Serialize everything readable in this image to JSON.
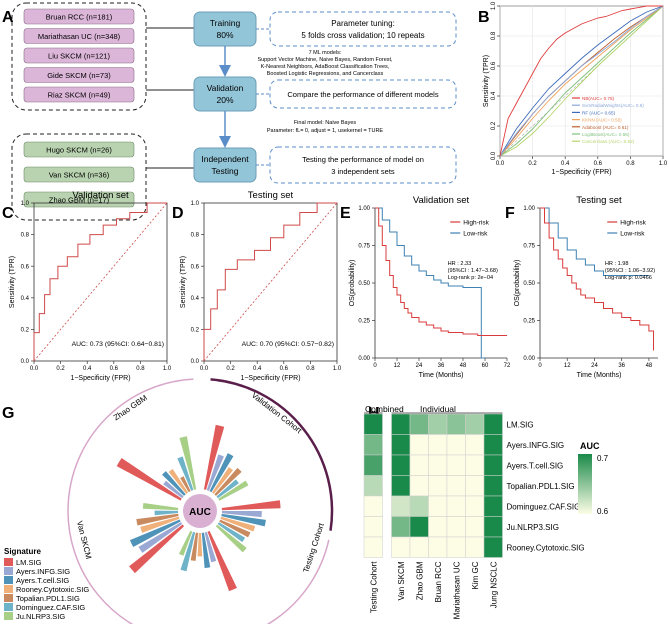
{
  "colors": {
    "pink_box": "#dcb6d9",
    "pink_border": "#222222",
    "green_box": "#b9d3b0",
    "blue_box": "#93c5d8",
    "dash_blue": "#5b8ec9",
    "roc_red": "#cf4a4a",
    "km_red": "#d93b3b",
    "km_blue": "#3f82b3",
    "heat_low": "#fdfde6",
    "heat_high": "#1a8a4a",
    "arc_dark": "#5a1e4a",
    "arc_light": "#d7a6c9",
    "auc_center": "#d9b0d2"
  },
  "panels": {
    "A": "A",
    "B": "B",
    "C": "C",
    "D": "D",
    "E": "E",
    "F": "F",
    "G": "G",
    "H": "H"
  },
  "panel_a": {
    "training_cohorts": [
      "Bruan RCC (n=181)",
      "Mariathasan UC (n=348)",
      "Liu SKCM (n=121)",
      "Gide SKCM (n=73)",
      "Riaz SKCM (n=49)"
    ],
    "testing_cohorts": [
      "Hugo SKCM (n=26)",
      "Van SKCM (n=36)",
      "Zhao GBM (n=17)"
    ],
    "training_label": "Training",
    "training_pct": "80%",
    "validation_label": "Validation",
    "validation_pct": "20%",
    "testing_label_1": "Independent",
    "testing_label_2": "Testing",
    "tuning_title": "Parameter tuning:",
    "tuning_desc": "5 folds cross validation; 10 repeats",
    "models_title": "7 ML models:",
    "models_line1": "Support Vector Machine, Naive Bayes, Random Forest,",
    "models_line2": "K-Nearest Neighbors, AdaBoost Classification Trees,",
    "models_line3": "Boosted Logistic Regressions, and Cancerclass",
    "compare_text": "Compare the performance of different models",
    "final_title": "Final model: Naive Bayes",
    "final_params": "Parameter:  fL= 0,  adjust = 1,  usekernel = TURE",
    "testing_line1": "Testing the performance of model  on",
    "testing_line2": "3 independent sets"
  },
  "panel_b": {
    "xlabel": "1−Specificity (FPR)",
    "ylabel": "Sensitivity (TPR)",
    "xticks": [
      "0.0",
      "0.2",
      "0.4",
      "0.6",
      "0.8",
      "1.0"
    ],
    "yticks": [
      "0.0",
      "0.2",
      "0.4",
      "0.6",
      "0.8",
      "1.0"
    ],
    "legend": [
      {
        "label": "NB(AUC= 0.75)",
        "color": "#e03c3c"
      },
      {
        "label": "SvmRadialWeights(AUC= 0.6)",
        "color": "#8aa7d8"
      },
      {
        "label": "RF (AUC= 0.65)",
        "color": "#3d6ab8"
      },
      {
        "label": "KKNN (AUC= 0.58)",
        "color": "#f0a35a"
      },
      {
        "label": "Adaboost (AUC= 0.61)",
        "color": "#c0622f"
      },
      {
        "label": "LogitBoost(AUC= 0.55)",
        "color": "#7fc07a"
      },
      {
        "label": "Cancerclass (AUC= 0.52)",
        "color": "#b5d56a"
      }
    ]
  },
  "panel_c": {
    "title": "Validation set",
    "xlabel": "1−Specificity (FPR)",
    "ylabel": "Sensitivity (TPR)",
    "auc_text": "AUC: 0.73 (95%CI: 0.64−0.81)",
    "xticks": [
      "0.0",
      "0.2",
      "0.4",
      "0.6",
      "0.8",
      "1.0"
    ],
    "yticks": [
      "0.0",
      "0.2",
      "0.4",
      "0.6",
      "0.8",
      "1.0"
    ]
  },
  "panel_d": {
    "title": "Testing set",
    "xlabel": "1−Specificity (FPR)",
    "ylabel": "Sensitivity (TPR)",
    "auc_text": "AUC: 0.70 (95%CI: 0.57−0.82)",
    "xticks": [
      "0.0",
      "0.2",
      "0.4",
      "0.6",
      "0.8",
      "1.0"
    ],
    "yticks": [
      "0.0",
      "0.2",
      "0.4",
      "0.6",
      "0.8",
      "1.0"
    ]
  },
  "panel_e": {
    "title": "Validation set",
    "xlabel": "Time (Months)",
    "ylabel": "OS(probability)",
    "xticks": [
      "0",
      "12",
      "24",
      "36",
      "48",
      "60",
      "72"
    ],
    "yticks": [
      "0.00",
      "0.25",
      "0.50",
      "0.75",
      "1.00"
    ],
    "legend_high": "High-risk",
    "legend_low": "Low-risk",
    "hr": "HR : 2.33",
    "ci": "(95%CI : 1.47−3.68)",
    "pval": "Log-rank p: 2e−04"
  },
  "panel_f": {
    "title": "Testing set",
    "xlabel": "Time (Months)",
    "ylabel": "OS(probability)",
    "xticks": [
      "0",
      "12",
      "24",
      "36",
      "48"
    ],
    "yticks": [
      "0.00",
      "0.25",
      "0.50",
      "0.75",
      "1.00"
    ],
    "legend_high": "High-risk",
    "legend_low": "Low-risk",
    "hr": "HR : 1.98",
    "ci": "(95%CI : 1.06−3.92)",
    "pval": "Log-rank p: 0.0466"
  },
  "panel_g": {
    "center": "AUC",
    "arc_validation": "Validation Cohort",
    "arc_testing": "Testing Cohort",
    "arc_hugo": "Hugo SKCM",
    "arc_van": "Van SKCM",
    "arc_zhao": "Zhao GBM",
    "legend_title": "Signature",
    "signatures": [
      {
        "label": "LM.SIG",
        "color": "#e15a5a"
      },
      {
        "label": "Ayers.INFG.SIG",
        "color": "#9aa8d4"
      },
      {
        "label": "Ayers.T.cell.SIG",
        "color": "#4f93b8"
      },
      {
        "label": "Rooney.Cytotoxic.SIG",
        "color": "#f0b07a"
      },
      {
        "label": "Topalian.PDL1.SIG",
        "color": "#c88a5e"
      },
      {
        "label": "Dominguez.CAF.SIG",
        "color": "#6fb3c9"
      },
      {
        "label": "Ju.NLRP3.SIG",
        "color": "#a7cf86"
      }
    ]
  },
  "panel_h": {
    "header_combined": "Combined",
    "header_individual": "Individual",
    "rows": [
      "LM.SIG",
      "Ayers.INFG.SIG",
      "Ayers.T.cell.SIG",
      "Topalian.PDL1.SIG",
      "Dominguez.CAF.SIG",
      "Ju.NLRP3.SIG",
      "Rooney.Cytotoxic.SIG"
    ],
    "cols": [
      "Testing Cohort",
      "Van SKCM",
      "Zhao GBM",
      "Bruan RCC",
      "Mariathasan UC",
      "Kim GC",
      "Jung NSCLC"
    ],
    "legend_title": "AUC",
    "legend_max": "0.7",
    "legend_min": "0.6"
  },
  "chart_data": [
    {
      "type": "line",
      "panel": "B",
      "xlabel": "1−Specificity (FPR)",
      "ylabel": "Sensitivity (TPR)",
      "xlim": [
        0,
        1
      ],
      "ylim": [
        0,
        1
      ],
      "series": [
        {
          "name": "NB(AUC= 0.75)",
          "x": [
            0,
            0.05,
            0.1,
            0.15,
            0.2,
            0.25,
            0.3,
            0.35,
            0.4,
            0.45,
            0.5,
            0.55,
            0.6,
            0.65,
            0.7,
            0.75,
            0.8,
            0.9,
            1
          ],
          "y": [
            0,
            0.25,
            0.35,
            0.45,
            0.55,
            0.65,
            0.72,
            0.78,
            0.82,
            0.85,
            0.88,
            0.9,
            0.92,
            0.93,
            0.95,
            0.97,
            0.98,
            1,
            1
          ]
        },
        {
          "name": "SvmRadialWeights(AUC= 0.6)",
          "x": [
            0,
            0.1,
            0.2,
            0.3,
            0.4,
            0.5,
            0.6,
            0.7,
            0.8,
            0.9,
            1
          ],
          "y": [
            0,
            0.15,
            0.28,
            0.4,
            0.5,
            0.6,
            0.68,
            0.76,
            0.85,
            0.93,
            1
          ]
        },
        {
          "name": "RF (AUC= 0.65)",
          "x": [
            0,
            0.1,
            0.2,
            0.3,
            0.4,
            0.5,
            0.6,
            0.7,
            0.8,
            0.9,
            1
          ],
          "y": [
            0,
            0.18,
            0.32,
            0.45,
            0.55,
            0.65,
            0.74,
            0.82,
            0.9,
            0.96,
            1
          ]
        },
        {
          "name": "KKNN (AUC= 0.58)",
          "x": [
            0,
            0.1,
            0.2,
            0.3,
            0.4,
            0.5,
            0.6,
            0.7,
            0.8,
            0.9,
            1
          ],
          "y": [
            0,
            0.12,
            0.25,
            0.37,
            0.48,
            0.57,
            0.66,
            0.75,
            0.84,
            0.92,
            1
          ]
        },
        {
          "name": "Adaboost (AUC= 0.61)",
          "x": [
            0,
            0.1,
            0.2,
            0.3,
            0.4,
            0.5,
            0.6,
            0.7,
            0.8,
            0.9,
            1
          ],
          "y": [
            0,
            0.14,
            0.28,
            0.4,
            0.5,
            0.6,
            0.69,
            0.78,
            0.86,
            0.93,
            1
          ]
        },
        {
          "name": "LogitBoost(AUC= 0.55)",
          "x": [
            0,
            0.1,
            0.2,
            0.3,
            0.4,
            0.5,
            0.6,
            0.7,
            0.8,
            0.9,
            1
          ],
          "y": [
            0,
            0.08,
            0.18,
            0.3,
            0.42,
            0.52,
            0.62,
            0.72,
            0.82,
            0.91,
            1
          ]
        },
        {
          "name": "Cancerclass (AUC= 0.52)",
          "x": [
            0,
            0.1,
            0.2,
            0.3,
            0.4,
            0.5,
            0.6,
            0.7,
            0.8,
            0.9,
            1
          ],
          "y": [
            0,
            0.06,
            0.15,
            0.26,
            0.38,
            0.49,
            0.6,
            0.7,
            0.8,
            0.9,
            1
          ]
        }
      ]
    },
    {
      "type": "line",
      "panel": "C",
      "title": "Validation set",
      "xlim": [
        0,
        1
      ],
      "ylim": [
        0,
        1
      ],
      "series": [
        {
          "x": [
            0,
            0,
            0.04,
            0.04,
            0.08,
            0.08,
            0.12,
            0.12,
            0.18,
            0.18,
            0.25,
            0.25,
            0.33,
            0.33,
            0.42,
            0.42,
            0.52,
            0.52,
            0.62,
            0.62,
            0.72,
            0.72,
            0.85,
            0.85,
            1
          ],
          "y": [
            0,
            0.18,
            0.18,
            0.3,
            0.3,
            0.42,
            0.42,
            0.52,
            0.52,
            0.6,
            0.6,
            0.66,
            0.66,
            0.74,
            0.74,
            0.8,
            0.8,
            0.86,
            0.86,
            0.9,
            0.9,
            0.94,
            0.94,
            1,
            1
          ]
        }
      ],
      "auc": 0.73
    },
    {
      "type": "line",
      "panel": "D",
      "title": "Testing set",
      "xlim": [
        0,
        1
      ],
      "ylim": [
        0,
        1
      ],
      "series": [
        {
          "x": [
            0,
            0,
            0.05,
            0.05,
            0.1,
            0.1,
            0.16,
            0.16,
            0.25,
            0.25,
            0.38,
            0.38,
            0.5,
            0.5,
            0.6,
            0.6,
            0.72,
            0.72,
            0.85,
            0.85,
            1
          ],
          "y": [
            0,
            0.2,
            0.2,
            0.33,
            0.33,
            0.45,
            0.45,
            0.58,
            0.58,
            0.64,
            0.64,
            0.7,
            0.7,
            0.78,
            0.78,
            0.86,
            0.86,
            0.94,
            0.94,
            1,
            1
          ]
        }
      ],
      "auc": 0.7
    },
    {
      "type": "line",
      "panel": "E",
      "title": "Validation set",
      "xlim": [
        0,
        72
      ],
      "ylim": [
        0,
        1
      ],
      "series": [
        {
          "name": "High-risk",
          "x": [
            0,
            2,
            4,
            6,
            8,
            10,
            12,
            14,
            16,
            18,
            20,
            24,
            28,
            32,
            36,
            40,
            48,
            56,
            64,
            72
          ],
          "y": [
            1,
            0.88,
            0.75,
            0.65,
            0.55,
            0.47,
            0.42,
            0.37,
            0.33,
            0.3,
            0.27,
            0.24,
            0.22,
            0.2,
            0.18,
            0.17,
            0.16,
            0.15,
            0.15,
            0.15
          ]
        },
        {
          "name": "Low-risk",
          "x": [
            0,
            4,
            8,
            12,
            16,
            20,
            24,
            28,
            32,
            36,
            40,
            44,
            48,
            52,
            56,
            58,
            60
          ],
          "y": [
            1,
            0.92,
            0.84,
            0.75,
            0.68,
            0.62,
            0.58,
            0.55,
            0.52,
            0.5,
            0.48,
            0.48,
            0.47,
            0.47,
            0.47,
            0,
            0
          ]
        }
      ]
    },
    {
      "type": "line",
      "panel": "F",
      "title": "Testing set",
      "xlim": [
        0,
        52
      ],
      "ylim": [
        0,
        1
      ],
      "series": [
        {
          "name": "High-risk",
          "x": [
            0,
            2,
            4,
            6,
            8,
            10,
            12,
            14,
            16,
            18,
            20,
            24,
            28,
            32,
            36,
            40,
            44,
            48,
            50
          ],
          "y": [
            1,
            0.9,
            0.8,
            0.72,
            0.66,
            0.6,
            0.55,
            0.5,
            0.46,
            0.42,
            0.4,
            0.37,
            0.33,
            0.3,
            0.27,
            0.25,
            0.22,
            0.18,
            0.05
          ]
        },
        {
          "name": "Low-risk",
          "x": [
            0,
            4,
            8,
            12,
            16,
            20,
            24,
            28,
            32,
            36,
            40,
            44,
            48
          ],
          "y": [
            1,
            0.9,
            0.8,
            0.72,
            0.66,
            0.62,
            0.58,
            0.55,
            0.55,
            0.55,
            0.55,
            0.55,
            0.55
          ]
        }
      ]
    },
    {
      "type": "bar",
      "panel": "G",
      "groups": [
        "Validation Cohort",
        "Testing Cohort",
        "Hugo SKCM",
        "Van SKCM",
        "Zhao GBM"
      ],
      "series": [
        {
          "name": "LM.SIG",
          "values": [
            0.73,
            0.7,
            0.72,
            0.74,
            0.76
          ]
        },
        {
          "name": "Ayers.INFG.SIG",
          "values": [
            0.61,
            0.62,
            0.58,
            0.66,
            0.55
          ]
        },
        {
          "name": "Ayers.T.cell.SIG",
          "values": [
            0.63,
            0.64,
            0.6,
            0.68,
            0.58
          ]
        },
        {
          "name": "Rooney.Cytotoxic.SIG",
          "values": [
            0.58,
            0.6,
            0.55,
            0.62,
            0.57
          ]
        },
        {
          "name": "Topalian.PDL1.SIG",
          "values": [
            0.6,
            0.59,
            0.57,
            0.63,
            0.52
          ]
        },
        {
          "name": "Dominguez.CAF.SIG",
          "values": [
            0.56,
            0.58,
            0.62,
            0.55,
            0.6
          ]
        },
        {
          "name": "Ju.NLRP3.SIG",
          "values": [
            0.59,
            0.61,
            0.56,
            0.6,
            0.68
          ]
        }
      ]
    },
    {
      "type": "heatmap",
      "panel": "H",
      "rows": [
        "LM.SIG",
        "Ayers.INFG.SIG",
        "Ayers.T.cell.SIG",
        "Topalian.PDL1.SIG",
        "Dominguez.CAF.SIG",
        "Ju.NLRP3.SIG",
        "Rooney.Cytotoxic.SIG"
      ],
      "cols": [
        "Testing Cohort",
        "Van SKCM",
        "Zhao GBM",
        "Bruan RCC",
        "Mariathasan UC",
        "Kim GC",
        "Jung NSCLC"
      ],
      "values": [
        [
          0.7,
          0.7,
          0.66,
          0.64,
          0.65,
          0.64,
          0.7
        ],
        [
          0.66,
          0.7,
          0.6,
          0.6,
          0.6,
          0.6,
          0.7
        ],
        [
          0.68,
          0.7,
          0.6,
          0.6,
          0.6,
          0.6,
          0.7
        ],
        [
          0.63,
          0.7,
          0.6,
          0.6,
          0.6,
          0.6,
          0.7
        ],
        [
          0.6,
          0.62,
          0.63,
          0.6,
          0.6,
          0.6,
          0.7
        ],
        [
          0.6,
          0.66,
          0.7,
          0.6,
          0.6,
          0.6,
          0.7
        ],
        [
          0.6,
          0.6,
          0.6,
          0.6,
          0.6,
          0.6,
          0.7
        ]
      ],
      "legend_title": "AUC",
      "range": [
        0.6,
        0.7
      ]
    }
  ]
}
